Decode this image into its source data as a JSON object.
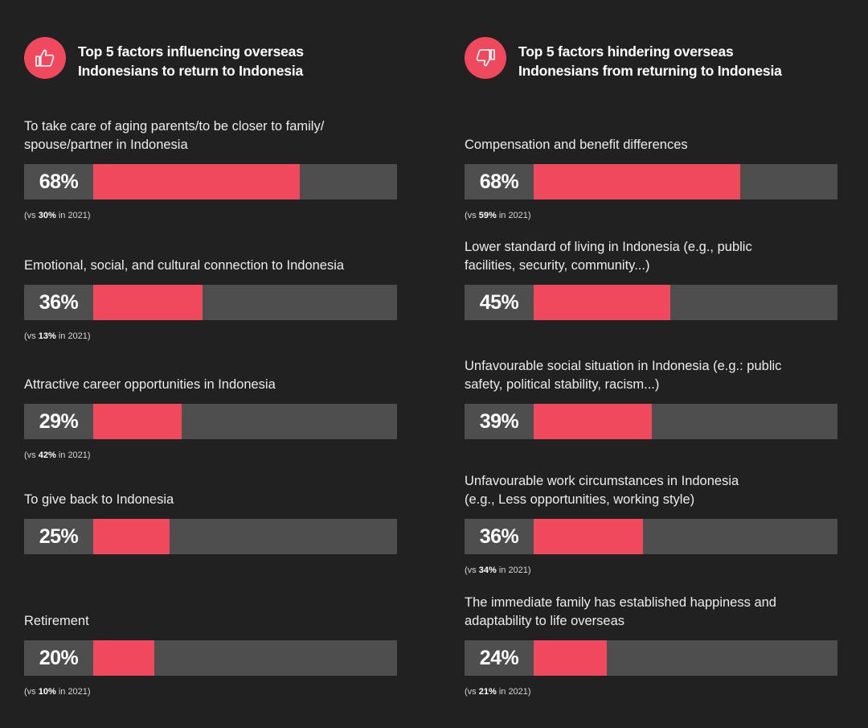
{
  "colors": {
    "background": "#212121",
    "track": "#4e4e4e",
    "fill": "#f0485d",
    "icon_bg": "#f0485d"
  },
  "left": {
    "icon": "thumbs-up-icon",
    "title_line1": "Top 5 factors influencing overseas",
    "title_line2": "Indonesians to return to Indonesia"
  },
  "right": {
    "icon": "thumbs-down-icon",
    "title_line1": "Top 5 factors hindering overseas",
    "title_line2": "Indonesians from returning to Indonesia"
  },
  "chart_data": [
    {
      "type": "bar",
      "orientation": "horizontal",
      "title": "Top 5 factors influencing overseas Indonesians to return to Indonesia",
      "xlim": [
        0,
        100
      ],
      "items": [
        {
          "label_lines": [
            "To take care of aging parents/to be closer to family/",
            "spouse/partner in Indonesia"
          ],
          "value": 68,
          "value_label": "68%",
          "comparison_prefix": "(vs ",
          "comparison_value": "30%",
          "comparison_suffix": " in 2021)"
        },
        {
          "label_lines": [
            "Emotional, social, and cultural connection to Indonesia"
          ],
          "value": 36,
          "value_label": "36%",
          "comparison_prefix": "(vs ",
          "comparison_value": "13%",
          "comparison_suffix": " in 2021)"
        },
        {
          "label_lines": [
            "Attractive career opportunities in Indonesia"
          ],
          "value": 29,
          "value_label": "29%",
          "comparison_prefix": "(vs ",
          "comparison_value": "42%",
          "comparison_suffix": " in 2021)"
        },
        {
          "label_lines": [
            "To give back to Indonesia"
          ],
          "value": 25,
          "value_label": "25%"
        },
        {
          "label_lines": [
            "Retirement"
          ],
          "value": 20,
          "value_label": "20%",
          "comparison_prefix": "(vs ",
          "comparison_value": "10%",
          "comparison_suffix": " in 2021)"
        }
      ]
    },
    {
      "type": "bar",
      "orientation": "horizontal",
      "title": "Top 5 factors hindering overseas Indonesians from returning to Indonesia",
      "xlim": [
        0,
        100
      ],
      "items": [
        {
          "label_lines": [
            "Compensation and benefit differences"
          ],
          "value": 68,
          "value_label": "68%",
          "comparison_prefix": "(vs ",
          "comparison_value": "59%",
          "comparison_suffix": " in 2021)"
        },
        {
          "label_lines": [
            "Lower standard of living in Indonesia (e.g., public",
            "facilities, security, community...)"
          ],
          "value": 45,
          "value_label": "45%"
        },
        {
          "label_lines": [
            "Unfavourable social situation in Indonesia (e.g.: public",
            "safety, political stability, racism...)"
          ],
          "value": 39,
          "value_label": "39%"
        },
        {
          "label_lines": [
            "Unfavourable work circumstances in Indonesia",
            "(e.g., Less opportunities, working style)"
          ],
          "value": 36,
          "value_label": "36%",
          "comparison_prefix": "(vs ",
          "comparison_value": "34%",
          "comparison_suffix": " in 2021)"
        },
        {
          "label_lines": [
            "The immediate family has established happiness and",
            "adaptability to life overseas"
          ],
          "value": 24,
          "value_label": "24%",
          "comparison_prefix": "(vs ",
          "comparison_value": "21%",
          "comparison_suffix": " in 2021)"
        }
      ]
    }
  ]
}
